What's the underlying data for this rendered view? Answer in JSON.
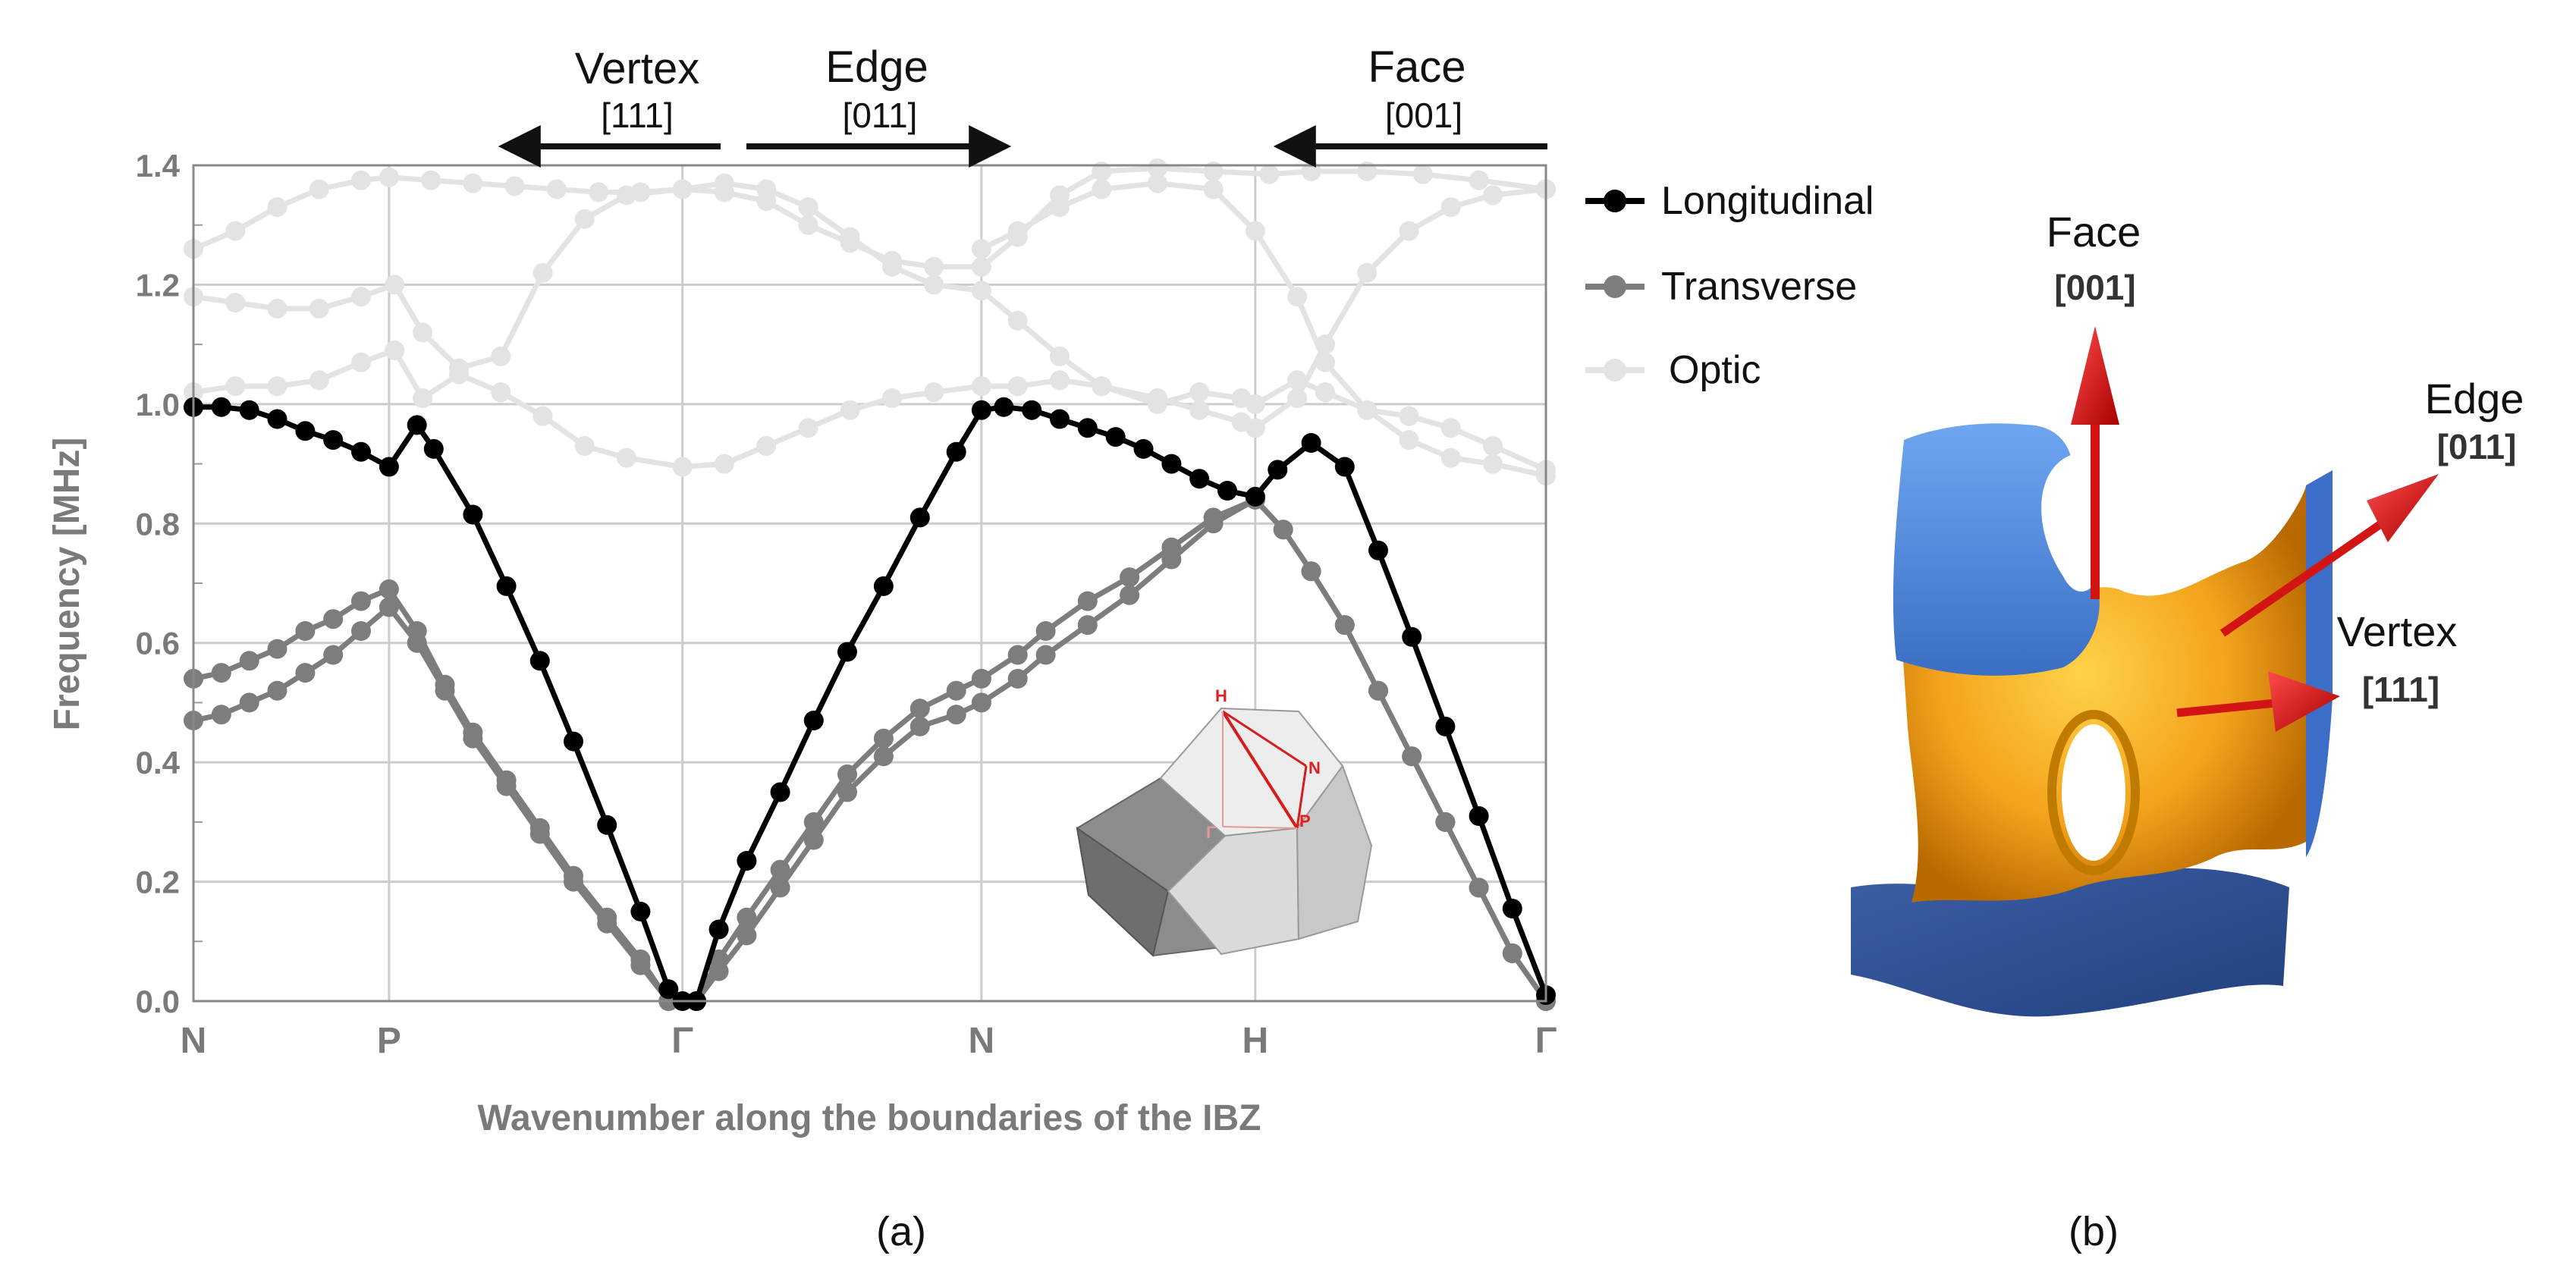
{
  "chart_data": {
    "type": "line",
    "xlabel": "Wavenumber along the boundaries of the IBZ",
    "ylabel": "Frequency [MHz]",
    "ylim": [
      0,
      1.4
    ],
    "yticks": [
      "0.0",
      "0.2",
      "0.4",
      "0.6",
      "0.8",
      "1.0",
      "1.2",
      "1.4"
    ],
    "xticks": [
      "N",
      "P",
      "Γ",
      "N",
      "H",
      "Γ"
    ],
    "grid": true,
    "legend_position": "right",
    "panel_labels": {
      "a": "(a)",
      "b": "(b)"
    },
    "directions": [
      {
        "name": "Vertex",
        "miller": "[111]"
      },
      {
        "name": "Edge",
        "miller": "[011]"
      },
      {
        "name": "Face",
        "miller": "[001]"
      }
    ],
    "inset": {
      "labels": [
        "H",
        "N",
        "P",
        "Γ"
      ]
    },
    "series": [
      {
        "name": "Longitudinal",
        "color": "#000000",
        "points": [
          [
            0,
            0.995
          ],
          [
            0.1,
            0.995
          ],
          [
            0.2,
            0.99
          ],
          [
            0.3,
            0.975
          ],
          [
            0.4,
            0.955
          ],
          [
            0.5,
            0.94
          ],
          [
            0.6,
            0.92
          ],
          [
            0.7,
            0.895
          ],
          [
            0.8,
            0.965
          ],
          [
            0.86,
            0.925
          ],
          [
            1.0,
            0.815
          ],
          [
            1.12,
            0.695
          ],
          [
            1.24,
            0.57
          ],
          [
            1.36,
            0.435
          ],
          [
            1.48,
            0.295
          ],
          [
            1.6,
            0.15
          ],
          [
            1.7,
            0.02
          ],
          [
            1.75,
            0.0
          ],
          [
            1.8,
            0.0
          ],
          [
            1.88,
            0.12
          ],
          [
            1.98,
            0.235
          ],
          [
            2.1,
            0.35
          ],
          [
            2.22,
            0.47
          ],
          [
            2.34,
            0.585
          ],
          [
            2.47,
            0.695
          ],
          [
            2.6,
            0.81
          ],
          [
            2.73,
            0.92
          ],
          [
            2.82,
            0.99
          ],
          [
            2.9,
            0.995
          ],
          [
            3.0,
            0.99
          ],
          [
            3.1,
            0.975
          ],
          [
            3.2,
            0.96
          ],
          [
            3.3,
            0.945
          ],
          [
            3.4,
            0.925
          ],
          [
            3.5,
            0.9
          ],
          [
            3.6,
            0.875
          ],
          [
            3.7,
            0.855
          ],
          [
            3.8,
            0.845
          ],
          [
            3.88,
            0.89
          ],
          [
            4.0,
            0.935
          ],
          [
            4.12,
            0.895
          ],
          [
            4.24,
            0.755
          ],
          [
            4.36,
            0.61
          ],
          [
            4.48,
            0.46
          ],
          [
            4.6,
            0.31
          ],
          [
            4.72,
            0.155
          ],
          [
            4.84,
            0.01
          ]
        ]
      },
      {
        "name": "Transverse",
        "color": "#7d7d7d",
        "points": [
          [
            0,
            0.47
          ],
          [
            0.1,
            0.48
          ],
          [
            0.2,
            0.5
          ],
          [
            0.3,
            0.52
          ],
          [
            0.4,
            0.55
          ],
          [
            0.5,
            0.58
          ],
          [
            0.6,
            0.62
          ],
          [
            0.7,
            0.66
          ],
          [
            0.8,
            0.6
          ],
          [
            0.9,
            0.52
          ],
          [
            1.0,
            0.44
          ],
          [
            1.12,
            0.36
          ],
          [
            1.24,
            0.28
          ],
          [
            1.36,
            0.2
          ],
          [
            1.48,
            0.13
          ],
          [
            1.6,
            0.06
          ],
          [
            1.7,
            0.0
          ],
          [
            1.8,
            0.0
          ],
          [
            1.88,
            0.05
          ],
          [
            1.98,
            0.11
          ],
          [
            2.1,
            0.19
          ],
          [
            2.22,
            0.27
          ],
          [
            2.34,
            0.35
          ],
          [
            2.47,
            0.41
          ],
          [
            2.6,
            0.46
          ],
          [
            2.73,
            0.48
          ],
          [
            2.82,
            0.5
          ],
          [
            2.95,
            0.54
          ],
          [
            3.05,
            0.58
          ],
          [
            3.2,
            0.63
          ],
          [
            3.35,
            0.68
          ],
          [
            3.5,
            0.74
          ],
          [
            3.65,
            0.8
          ],
          [
            3.8,
            0.84
          ],
          [
            3.9,
            0.79
          ],
          [
            4.0,
            0.72
          ],
          [
            4.12,
            0.63
          ],
          [
            4.24,
            0.52
          ],
          [
            4.36,
            0.41
          ],
          [
            4.48,
            0.3
          ],
          [
            4.6,
            0.19
          ],
          [
            4.72,
            0.08
          ],
          [
            4.84,
            0.0
          ]
        ]
      },
      {
        "name": "Transverse",
        "color": "#7d7d7d",
        "points": [
          [
            0,
            0.54
          ],
          [
            0.1,
            0.55
          ],
          [
            0.2,
            0.57
          ],
          [
            0.3,
            0.59
          ],
          [
            0.4,
            0.62
          ],
          [
            0.5,
            0.64
          ],
          [
            0.6,
            0.67
          ],
          [
            0.7,
            0.69
          ],
          [
            0.8,
            0.62
          ],
          [
            0.9,
            0.53
          ],
          [
            1.0,
            0.45
          ],
          [
            1.12,
            0.37
          ],
          [
            1.24,
            0.29
          ],
          [
            1.36,
            0.21
          ],
          [
            1.48,
            0.14
          ],
          [
            1.6,
            0.07
          ],
          [
            1.7,
            0.0
          ],
          [
            1.8,
            0.0
          ],
          [
            1.88,
            0.07
          ],
          [
            1.98,
            0.14
          ],
          [
            2.1,
            0.22
          ],
          [
            2.22,
            0.3
          ],
          [
            2.34,
            0.38
          ],
          [
            2.47,
            0.44
          ],
          [
            2.6,
            0.49
          ],
          [
            2.73,
            0.52
          ],
          [
            2.82,
            0.54
          ],
          [
            2.95,
            0.58
          ],
          [
            3.05,
            0.62
          ],
          [
            3.2,
            0.67
          ],
          [
            3.35,
            0.71
          ],
          [
            3.5,
            0.76
          ],
          [
            3.65,
            0.81
          ],
          [
            3.8,
            0.84
          ],
          [
            3.9,
            0.79
          ],
          [
            4.0,
            0.72
          ],
          [
            4.12,
            0.63
          ],
          [
            4.24,
            0.52
          ],
          [
            4.36,
            0.41
          ],
          [
            4.48,
            0.3
          ],
          [
            4.6,
            0.19
          ],
          [
            4.72,
            0.08
          ],
          [
            4.84,
            0.0
          ]
        ]
      },
      {
        "name": "Optic",
        "color": "#e3e3e3",
        "points": [
          [
            0,
            1.26
          ],
          [
            0.15,
            1.29
          ],
          [
            0.3,
            1.33
          ],
          [
            0.45,
            1.36
          ],
          [
            0.6,
            1.375
          ],
          [
            0.7,
            1.38
          ],
          [
            0.85,
            1.375
          ],
          [
            1.0,
            1.37
          ],
          [
            1.15,
            1.365
          ],
          [
            1.3,
            1.36
          ],
          [
            1.45,
            1.355
          ],
          [
            1.6,
            1.355
          ],
          [
            1.75,
            1.36
          ],
          [
            1.9,
            1.355
          ],
          [
            2.05,
            1.34
          ],
          [
            2.2,
            1.3
          ],
          [
            2.35,
            1.27
          ],
          [
            2.5,
            1.24
          ],
          [
            2.65,
            1.23
          ],
          [
            2.82,
            1.23
          ],
          [
            2.95,
            1.28
          ],
          [
            3.1,
            1.35
          ],
          [
            3.25,
            1.39
          ],
          [
            3.45,
            1.395
          ],
          [
            3.65,
            1.39
          ],
          [
            3.85,
            1.385
          ],
          [
            4.0,
            1.39
          ],
          [
            4.2,
            1.39
          ],
          [
            4.4,
            1.385
          ],
          [
            4.6,
            1.375
          ],
          [
            4.84,
            1.36
          ]
        ]
      },
      {
        "name": "Optic",
        "color": "#e3e3e3",
        "points": [
          [
            0,
            1.18
          ],
          [
            0.15,
            1.17
          ],
          [
            0.3,
            1.16
          ],
          [
            0.45,
            1.16
          ],
          [
            0.6,
            1.18
          ],
          [
            0.72,
            1.2
          ],
          [
            0.82,
            1.12
          ],
          [
            0.95,
            1.06
          ],
          [
            1.1,
            1.08
          ],
          [
            1.25,
            1.22
          ],
          [
            1.4,
            1.31
          ],
          [
            1.55,
            1.35
          ],
          [
            1.75,
            1.36
          ],
          [
            1.9,
            1.37
          ],
          [
            2.05,
            1.36
          ],
          [
            2.2,
            1.33
          ],
          [
            2.35,
            1.28
          ],
          [
            2.5,
            1.23
          ],
          [
            2.65,
            1.2
          ],
          [
            2.82,
            1.19
          ],
          [
            2.95,
            1.14
          ],
          [
            3.1,
            1.08
          ],
          [
            3.25,
            1.03
          ],
          [
            3.45,
            1.0
          ],
          [
            3.6,
            1.02
          ],
          [
            3.75,
            1.01
          ],
          [
            3.8,
            1.0
          ],
          [
            3.95,
            1.04
          ],
          [
            4.05,
            1.02
          ],
          [
            4.2,
            0.99
          ],
          [
            4.35,
            0.98
          ],
          [
            4.5,
            0.96
          ],
          [
            4.65,
            0.93
          ],
          [
            4.84,
            0.89
          ]
        ]
      },
      {
        "name": "Optic",
        "color": "#e3e3e3",
        "points": [
          [
            0,
            1.02
          ],
          [
            0.15,
            1.03
          ],
          [
            0.3,
            1.03
          ],
          [
            0.45,
            1.04
          ],
          [
            0.6,
            1.07
          ],
          [
            0.72,
            1.09
          ],
          [
            0.82,
            1.01
          ],
          [
            0.95,
            1.05
          ],
          [
            1.1,
            1.02
          ],
          [
            1.25,
            0.98
          ],
          [
            1.4,
            0.93
          ],
          [
            1.55,
            0.91
          ],
          [
            1.75,
            0.895
          ],
          [
            1.9,
            0.9
          ],
          [
            2.05,
            0.93
          ],
          [
            2.2,
            0.96
          ],
          [
            2.35,
            0.99
          ],
          [
            2.5,
            1.01
          ],
          [
            2.65,
            1.02
          ],
          [
            2.82,
            1.03
          ],
          [
            2.95,
            1.03
          ],
          [
            3.1,
            1.04
          ],
          [
            3.25,
            1.03
          ],
          [
            3.45,
            1.01
          ],
          [
            3.6,
            0.99
          ],
          [
            3.75,
            0.97
          ],
          [
            3.8,
            0.96
          ],
          [
            3.95,
            1.01
          ],
          [
            4.05,
            1.1
          ],
          [
            4.2,
            1.22
          ],
          [
            4.35,
            1.29
          ],
          [
            4.5,
            1.33
          ],
          [
            4.65,
            1.35
          ],
          [
            4.84,
            1.36
          ]
        ]
      },
      {
        "name": "Optic",
        "color": "#e3e3e3",
        "points": [
          [
            2.82,
            1.26
          ],
          [
            2.95,
            1.29
          ],
          [
            3.1,
            1.33
          ],
          [
            3.25,
            1.36
          ],
          [
            3.45,
            1.37
          ],
          [
            3.65,
            1.36
          ],
          [
            3.8,
            1.29
          ],
          [
            3.95,
            1.18
          ],
          [
            4.05,
            1.07
          ],
          [
            4.2,
            0.99
          ],
          [
            4.35,
            0.94
          ],
          [
            4.5,
            0.91
          ],
          [
            4.65,
            0.9
          ],
          [
            4.84,
            0.88
          ]
        ]
      }
    ]
  }
}
